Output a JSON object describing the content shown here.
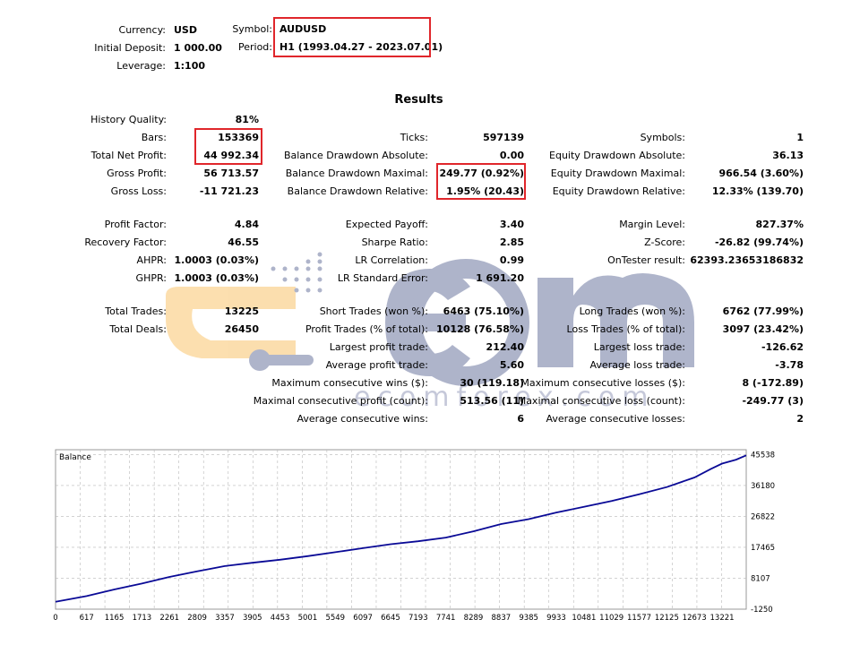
{
  "header": {
    "currency": {
      "label": "Currency:",
      "value": "USD"
    },
    "initial_deposit": {
      "label": "Initial Deposit:",
      "value": "1 000.00"
    },
    "leverage": {
      "label": "Leverage:",
      "value": "1:100"
    },
    "symbol": {
      "label": "Symbol:",
      "value": "AUDUSD"
    },
    "period": {
      "label": "Period:",
      "value": "H1 (1993.04.27 - 2023.07.01)"
    }
  },
  "results_title": "Results",
  "stats": {
    "history_quality": {
      "label": "History Quality:",
      "value": "81%"
    },
    "bars": {
      "label": "Bars:",
      "value": "153369"
    },
    "total_net_profit": {
      "label": "Total Net Profit:",
      "value": "44 992.34"
    },
    "gross_profit": {
      "label": "Gross Profit:",
      "value": "56 713.57"
    },
    "gross_loss": {
      "label": "Gross Loss:",
      "value": "-11 721.23"
    },
    "ticks": {
      "label": "Ticks:",
      "value": "597139"
    },
    "balance_dd_abs": {
      "label": "Balance Drawdown Absolute:",
      "value": "0.00"
    },
    "balance_dd_max": {
      "label": "Balance Drawdown Maximal:",
      "value": "249.77 (0.92%)"
    },
    "balance_dd_rel": {
      "label": "Balance Drawdown Relative:",
      "value": "1.95% (20.43)"
    },
    "symbols": {
      "label": "Symbols:",
      "value": "1"
    },
    "equity_dd_abs": {
      "label": "Equity Drawdown Absolute:",
      "value": "36.13"
    },
    "equity_dd_max": {
      "label": "Equity Drawdown Maximal:",
      "value": "966.54 (3.60%)"
    },
    "equity_dd_rel": {
      "label": "Equity Drawdown Relative:",
      "value": "12.33% (139.70)"
    },
    "profit_factor": {
      "label": "Profit Factor:",
      "value": "4.84"
    },
    "recovery_factor": {
      "label": "Recovery Factor:",
      "value": "46.55"
    },
    "ahpr": {
      "label": "AHPR:",
      "value": "1.0003 (0.03%)"
    },
    "ghpr": {
      "label": "GHPR:",
      "value": "1.0003 (0.03%)"
    },
    "expected_payoff": {
      "label": "Expected Payoff:",
      "value": "3.40"
    },
    "sharpe_ratio": {
      "label": "Sharpe Ratio:",
      "value": "2.85"
    },
    "lr_correlation": {
      "label": "LR Correlation:",
      "value": "0.99"
    },
    "lr_std_error": {
      "label": "LR Standard Error:",
      "value": "1 691.20"
    },
    "margin_level": {
      "label": "Margin Level:",
      "value": "827.37%"
    },
    "z_score": {
      "label": "Z-Score:",
      "value": "-26.82 (99.74%)"
    },
    "ontester_result": {
      "label": "OnTester result:",
      "value": "62393.23653186832"
    },
    "total_trades": {
      "label": "Total Trades:",
      "value": "13225"
    },
    "total_deals": {
      "label": "Total Deals:",
      "value": "26450"
    },
    "short_trades": {
      "label": "Short Trades (won %):",
      "value": "6463 (75.10%)"
    },
    "profit_trades": {
      "label": "Profit Trades (% of total):",
      "value": "10128 (76.58%)"
    },
    "largest_profit_trade": {
      "label": "Largest profit trade:",
      "value": "212.40"
    },
    "average_profit_trade": {
      "label": "Average profit trade:",
      "value": "5.60"
    },
    "max_consec_wins": {
      "label": "Maximum consecutive wins ($):",
      "value": "30 (119.18)"
    },
    "maximal_consec_profit": {
      "label": "Maximal consecutive profit (count):",
      "value": "513.56 (11)"
    },
    "avg_consec_wins": {
      "label": "Average consecutive wins:",
      "value": "6"
    },
    "long_trades": {
      "label": "Long Trades (won %):",
      "value": "6762 (77.99%)"
    },
    "loss_trades": {
      "label": "Loss Trades (% of total):",
      "value": "3097 (23.42%)"
    },
    "largest_loss_trade": {
      "label": "Largest loss trade:",
      "value": "-126.62"
    },
    "average_loss_trade": {
      "label": "Average loss trade:",
      "value": "-3.78"
    },
    "max_consec_losses": {
      "label": "Maximum consecutive losses ($):",
      "value": "8 (-172.89)"
    },
    "maximal_consec_loss": {
      "label": "Maximal consecutive loss (count):",
      "value": "-249.77 (3)"
    },
    "avg_consec_losses": {
      "label": "Average consecutive losses:",
      "value": "2"
    }
  },
  "watermark": {
    "text": "ecomforex.com",
    "color": "#1b2a6b",
    "accent": "#f5a21b"
  },
  "highlight_color": "#e0262b",
  "chart_data": {
    "type": "line",
    "title": "Balance",
    "line_color": "#0a0a96",
    "x_ticks": [
      0,
      617,
      1165,
      1713,
      2261,
      2809,
      3357,
      3905,
      4453,
      5001,
      5549,
      6097,
      6645,
      7193,
      7741,
      8289,
      8837,
      9385,
      9933,
      10481,
      11029,
      11577,
      12125,
      12673,
      13221
    ],
    "y_ticks": [
      -1250,
      8107,
      17465,
      26822,
      36180,
      45538
    ],
    "xlim": [
      0,
      13700
    ],
    "ylim": [
      -1250,
      47000
    ],
    "grid": true,
    "series": [
      {
        "x": [
          0,
          617,
          1165,
          1713,
          2261,
          2809,
          3357,
          3905,
          4453,
          5001,
          5549,
          6097,
          6645,
          7193,
          7741,
          8289,
          8837,
          9385,
          9933,
          10481,
          11029,
          11577,
          12125,
          12673,
          13000,
          13221,
          13500,
          13700
        ],
        "y": [
          1000,
          2700,
          4700,
          6500,
          8500,
          10200,
          11800,
          12800,
          13700,
          14800,
          16000,
          17200,
          18400,
          19300,
          20400,
          22300,
          24500,
          26000,
          28000,
          29700,
          31500,
          33500,
          35700,
          38600,
          41200,
          42800,
          44000,
          45300
        ]
      }
    ]
  }
}
